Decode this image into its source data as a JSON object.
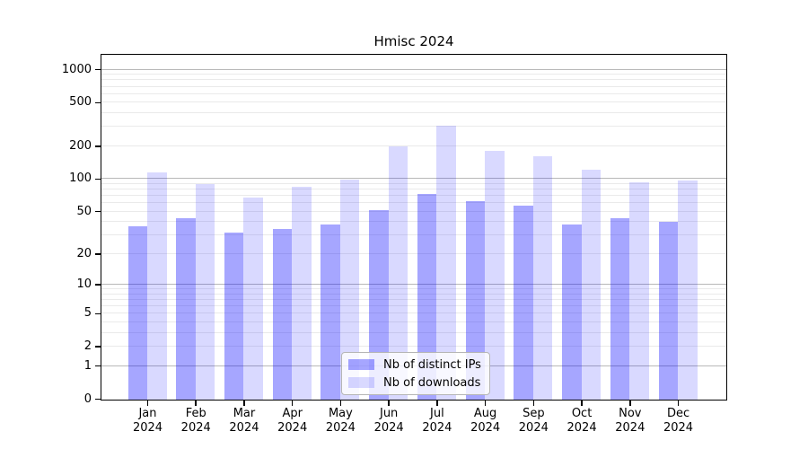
{
  "title": "Hmisc 2024",
  "legend": {
    "items": [
      {
        "label": "Nb of distinct IPs",
        "color": "rgba(0,0,255,0.35)"
      },
      {
        "label": "Nb of downloads",
        "color": "rgba(0,0,255,0.15)"
      }
    ]
  },
  "chart_data": {
    "type": "bar",
    "title": "Hmisc 2024",
    "categories": [
      "Jan 2024",
      "Feb 2024",
      "Mar 2024",
      "Apr 2024",
      "May 2024",
      "Jun 2024",
      "Jul 2024",
      "Aug 2024",
      "Sep 2024",
      "Oct 2024",
      "Nov 2024",
      "Dec 2024"
    ],
    "series": [
      {
        "name": "Nb of distinct IPs",
        "key": "ips",
        "color": "rgba(0,0,255,0.35)",
        "values": [
          37,
          44,
          32,
          35,
          38,
          52,
          74,
          63,
          57,
          38,
          44,
          41
        ]
      },
      {
        "name": "Nb of downloads",
        "key": "downloads",
        "color": "rgba(0,0,255,0.15)",
        "values": [
          116,
          90,
          68,
          85,
          100,
          200,
          310,
          182,
          165,
          122,
          95,
          98
        ]
      }
    ],
    "xlabel": "",
    "ylabel": "",
    "yscale": "log1p",
    "ylim": [
      0,
      1000
    ],
    "y_ticks": [
      0,
      1,
      2,
      5,
      10,
      20,
      50,
      100,
      200,
      500,
      1000
    ],
    "grid": "minor gridlines at 1-9 per decade, darker lines at powers of 10",
    "legend_position": "lower center, overlapping bars"
  }
}
